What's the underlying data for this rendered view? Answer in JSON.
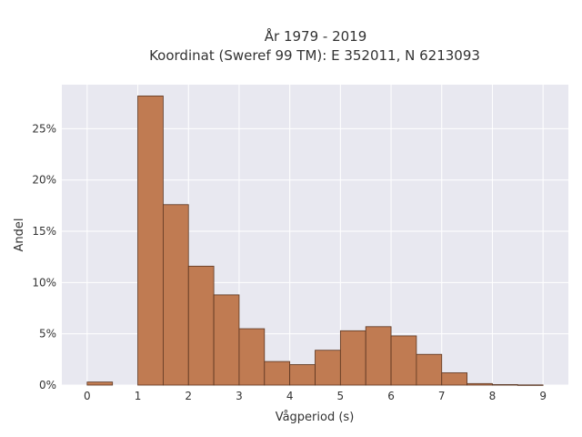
{
  "chart_data": {
    "type": "bar",
    "title_line1": "År 1979 - 2019",
    "title_line2": "Koordinat (Sweref 99 TM): E 352011, N 6213093",
    "xlabel": "Vågperiod (s)",
    "ylabel": "Andel",
    "xlim": [
      -0.5,
      9.5
    ],
    "ylim": [
      0,
      29.3
    ],
    "x_ticks": [
      0,
      1,
      2,
      3,
      4,
      5,
      6,
      7,
      8,
      9
    ],
    "y_ticks": [
      0,
      5,
      10,
      15,
      20,
      25
    ],
    "y_tick_labels": [
      "0%",
      "5%",
      "10%",
      "15%",
      "20%",
      "25%"
    ],
    "bin_width": 0.5,
    "bins": [
      {
        "start": 0.0,
        "value": 0.3
      },
      {
        "start": 0.5,
        "value": 0.0
      },
      {
        "start": 1.0,
        "value": 28.2
      },
      {
        "start": 1.5,
        "value": 17.6
      },
      {
        "start": 2.0,
        "value": 11.6
      },
      {
        "start": 2.5,
        "value": 8.8
      },
      {
        "start": 3.0,
        "value": 5.5
      },
      {
        "start": 3.5,
        "value": 2.3
      },
      {
        "start": 4.0,
        "value": 2.0
      },
      {
        "start": 4.5,
        "value": 3.4
      },
      {
        "start": 5.0,
        "value": 5.3
      },
      {
        "start": 5.5,
        "value": 5.7
      },
      {
        "start": 6.0,
        "value": 4.8
      },
      {
        "start": 6.5,
        "value": 3.0
      },
      {
        "start": 7.0,
        "value": 1.2
      },
      {
        "start": 7.5,
        "value": 0.15
      },
      {
        "start": 8.0,
        "value": 0.05
      },
      {
        "start": 8.5,
        "value": 0.02
      }
    ],
    "grid": true,
    "colors": {
      "plot_bg": "#e8e8f0",
      "bar_fill": "#c07b52",
      "bar_stroke": "#5a3520",
      "grid": "#ffffff"
    }
  }
}
